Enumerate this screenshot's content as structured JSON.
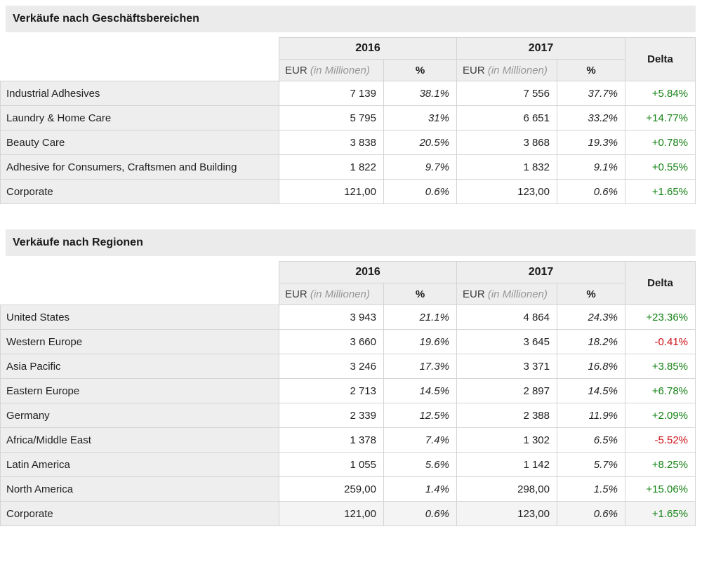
{
  "colors": {
    "positive": "#168316",
    "negative": "#cc1116"
  },
  "tables": [
    {
      "title": "Verkäufe nach Geschäftsbereichen",
      "header": {
        "year1": "2016",
        "year2": "2017",
        "delta": "Delta",
        "eur": "EUR",
        "eur_note": "(in Millionen)",
        "pct": "%"
      },
      "rows": [
        {
          "cells": [
            "Industrial Adhesives",
            "7 139",
            "38.1%",
            "7 556",
            "37.7%",
            "+5.84%"
          ],
          "dir": "pos"
        },
        {
          "cells": [
            "Laundry & Home Care",
            "5 795",
            "31%",
            "6 651",
            "33.2%",
            "+14.77%"
          ],
          "dir": "pos"
        },
        {
          "cells": [
            "Beauty Care",
            "3 838",
            "20.5%",
            "3 868",
            "19.3%",
            "+0.78%"
          ],
          "dir": "pos"
        },
        {
          "cells": [
            "Adhesive for Consumers, Craftsmen and Building",
            "1 822",
            "9.7%",
            "1 832",
            "9.1%",
            "+0.55%"
          ],
          "dir": "pos"
        },
        {
          "cells": [
            "Corporate",
            "121,00",
            "0.6%",
            "123,00",
            "0.6%",
            "+1.65%"
          ],
          "dir": "pos"
        }
      ]
    },
    {
      "title": "Verkäufe nach Regionen",
      "header": {
        "year1": "2016",
        "year2": "2017",
        "delta": "Delta",
        "eur": "EUR",
        "eur_note": "(in Millionen)",
        "pct": "%"
      },
      "rows": [
        {
          "cells": [
            "United States",
            "3 943",
            "21.1%",
            "4 864",
            "24.3%",
            "+23.36%"
          ],
          "dir": "pos"
        },
        {
          "cells": [
            "Western Europe",
            "3 660",
            "19.6%",
            "3 645",
            "18.2%",
            "-0.41%"
          ],
          "dir": "neg"
        },
        {
          "cells": [
            "Asia Pacific",
            "3 246",
            "17.3%",
            "3 371",
            "16.8%",
            "+3.85%"
          ],
          "dir": "pos"
        },
        {
          "cells": [
            "Eastern Europe",
            "2 713",
            "14.5%",
            "2 897",
            "14.5%",
            "+6.78%"
          ],
          "dir": "pos"
        },
        {
          "cells": [
            "Germany",
            "2 339",
            "12.5%",
            "2 388",
            "11.9%",
            "+2.09%"
          ],
          "dir": "pos"
        },
        {
          "cells": [
            "Africa/Middle East",
            "1 378",
            "7.4%",
            "1 302",
            "6.5%",
            "-5.52%"
          ],
          "dir": "neg"
        },
        {
          "cells": [
            "Latin America",
            "1 055",
            "5.6%",
            "1 142",
            "5.7%",
            "+8.25%"
          ],
          "dir": "pos"
        },
        {
          "cells": [
            "North America",
            "259,00",
            "1.4%",
            "298,00",
            "1.5%",
            "+15.06%"
          ],
          "dir": "pos"
        },
        {
          "cells": [
            "Corporate",
            "121,00",
            "0.6%",
            "123,00",
            "0.6%",
            "+1.65%"
          ],
          "dir": "pos",
          "highlighted": true
        }
      ]
    }
  ]
}
